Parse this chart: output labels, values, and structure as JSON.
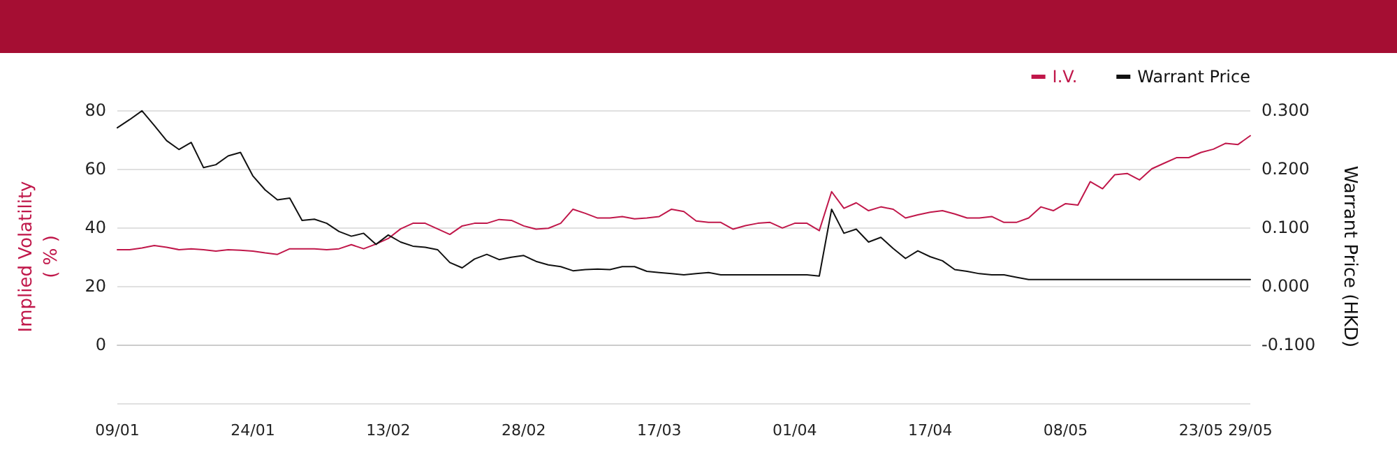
{
  "chart_data": {
    "type": "line",
    "categories": [
      "09/01",
      null,
      null,
      null,
      null,
      null,
      null,
      null,
      null,
      null,
      null,
      "24/01",
      null,
      null,
      null,
      null,
      null,
      null,
      null,
      null,
      null,
      null,
      "13/02",
      null,
      null,
      null,
      null,
      null,
      null,
      null,
      null,
      null,
      null,
      "28/02",
      null,
      null,
      null,
      null,
      null,
      null,
      null,
      null,
      null,
      null,
      "17/03",
      null,
      null,
      null,
      null,
      null,
      null,
      null,
      null,
      null,
      null,
      "01/04",
      null,
      null,
      null,
      null,
      null,
      null,
      null,
      null,
      null,
      null,
      "17/04",
      null,
      null,
      null,
      null,
      null,
      null,
      null,
      null,
      null,
      null,
      "08/05",
      null,
      null,
      null,
      null,
      null,
      null,
      null,
      null,
      null,
      null,
      "23/05",
      null,
      null,
      null,
      "29/05"
    ],
    "series": [
      {
        "name": "I.V.",
        "color": "#c0174a",
        "values": [
          32.4,
          32.4,
          33.0,
          33.8,
          33.2,
          32.4,
          32.7,
          32.4,
          31.9,
          32.4,
          32.2,
          31.9,
          31.3,
          30.8,
          32.7,
          32.7,
          32.7,
          32.4,
          32.7,
          34.1,
          32.7,
          34.3,
          36.2,
          39.5,
          41.4,
          41.4,
          39.5,
          37.6,
          40.5,
          41.4,
          41.4,
          42.7,
          42.4,
          40.5,
          39.4,
          39.7,
          41.4,
          46.2,
          44.8,
          43.2,
          43.2,
          43.7,
          42.9,
          43.2,
          43.7,
          46.2,
          45.4,
          42.2,
          41.7,
          41.7,
          39.4,
          40.6,
          41.4,
          41.7,
          39.8,
          41.4,
          41.4,
          38.9,
          52.2,
          46.5,
          48.4,
          45.7,
          47.0,
          46.2,
          43.2,
          44.3,
          45.2,
          45.7,
          44.6,
          43.2,
          43.2,
          43.7,
          41.7,
          41.7,
          43.2,
          47.0,
          45.7,
          48.1,
          47.6,
          55.6,
          53.2,
          58.0,
          58.4,
          56.2,
          60.0,
          61.9,
          63.8,
          63.8,
          65.6,
          66.7,
          68.7,
          68.3,
          71.3
        ]
      },
      {
        "name": "Warrant Price",
        "color": "#111111",
        "axis": "y2",
        "values": [
          0.27,
          0.284,
          0.299,
          0.274,
          0.248,
          0.233,
          0.245,
          0.202,
          0.207,
          0.222,
          0.228,
          0.188,
          0.164,
          0.147,
          0.15,
          0.112,
          0.114,
          0.107,
          0.093,
          0.085,
          0.09,
          0.071,
          0.087,
          0.075,
          0.068,
          0.066,
          0.062,
          0.04,
          0.031,
          0.046,
          0.054,
          0.045,
          0.049,
          0.052,
          0.042,
          0.036,
          0.033,
          0.026,
          0.028,
          0.029,
          0.028,
          0.033,
          0.033,
          0.025,
          0.023,
          0.021,
          0.019,
          0.021,
          0.023,
          0.019,
          0.019,
          0.019,
          0.019,
          0.019,
          0.019,
          0.019,
          0.019,
          0.017,
          0.131,
          0.09,
          0.097,
          0.075,
          0.083,
          0.064,
          0.047,
          0.06,
          0.05,
          0.043,
          0.028,
          0.025,
          0.021,
          0.019,
          0.019,
          0.015,
          0.011,
          0.011,
          0.011,
          0.011,
          0.011,
          0.011,
          0.011,
          0.011,
          0.011,
          0.011,
          0.011,
          0.011,
          0.011,
          0.011,
          0.011,
          0.011,
          0.011,
          0.011,
          0.011
        ]
      }
    ],
    "ylabel": "Implied Volatility\n( % )",
    "y2label": "Warrant Price (HKD)",
    "ylim": [
      -20,
      80
    ],
    "yticks": [
      {
        "value": -20,
        "label": null
      },
      0,
      20,
      40,
      60,
      80
    ],
    "y2lim": [
      -0.2,
      0.3
    ],
    "y2ticks": [
      {
        "value": -0.2,
        "label": null
      },
      {
        "value": -0.1,
        "label": "-0.100"
      },
      {
        "value": 0,
        "label": "0.000"
      },
      {
        "value": 0.1,
        "label": "0.100"
      },
      {
        "value": 0.2,
        "label": "0.200"
      },
      {
        "value": 0.3,
        "label": "0.300"
      }
    ],
    "grid": "y",
    "legend": "top right",
    "marker": "none",
    "line_style": "solid"
  }
}
